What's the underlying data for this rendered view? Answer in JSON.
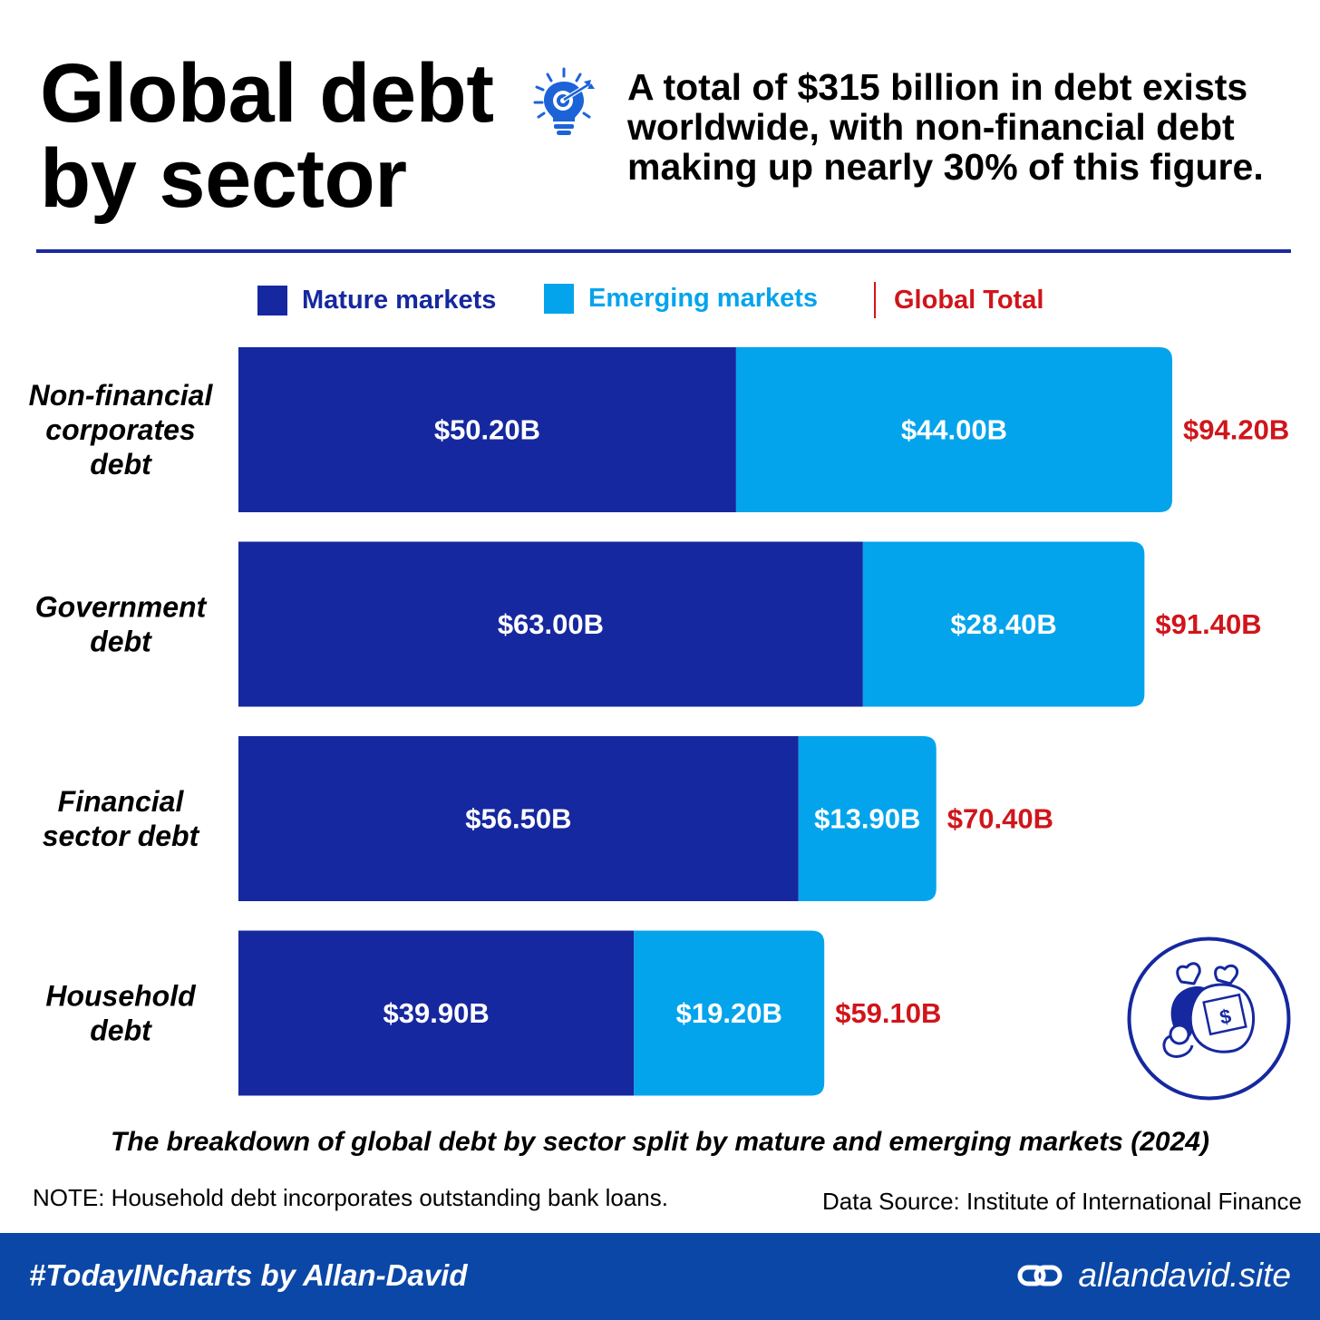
{
  "header": {
    "title_line1": "Global debt",
    "title_line2": "by sector",
    "subtitle": "A total of $315 billion in debt exists worldwide, with non-financial debt making up nearly 30% of this figure."
  },
  "icons": {
    "header_icon": "lightbulb-with-target-icon",
    "badge_icon": "money-bags-icon",
    "footer_icon": "link-icon"
  },
  "chart_data": {
    "type": "bar",
    "orientation": "horizontal",
    "stacked": true,
    "categories": [
      "Non-financial corporates debt",
      "Government debt",
      "Financial sector debt",
      "Household debt"
    ],
    "category_lines": [
      [
        "Non-financial",
        "corporates",
        "debt"
      ],
      [
        "Government",
        "debt"
      ],
      [
        "Financial",
        "sector debt"
      ],
      [
        "Household",
        "debt"
      ]
    ],
    "series": [
      {
        "name": "Mature markets",
        "color": "#16289f",
        "values": [
          50.2,
          63.0,
          56.5,
          39.9
        ],
        "labels": [
          "$50.20B",
          "$63.00B",
          "$56.50B",
          "$39.90B"
        ]
      },
      {
        "name": "Emerging markets",
        "color": "#04a4ec",
        "values": [
          44.0,
          28.4,
          13.9,
          19.2
        ],
        "labels": [
          "$44.00B",
          "$28.40B",
          "$13.90B",
          "$19.20B"
        ]
      }
    ],
    "totals": {
      "name": "Global Total",
      "color": "#d0151b",
      "values": [
        94.2,
        91.4,
        70.4,
        59.1
      ],
      "labels": [
        "$94.20B",
        "$91.40B",
        "$70.40B",
        "$59.10B"
      ]
    },
    "xlim": [
      0,
      94.2
    ],
    "legend": "top",
    "grid": false
  },
  "caption": "The breakdown of global debt by sector split by mature and emerging markets (2024)",
  "note": "NOTE: Household debt incorporates outstanding bank loans.",
  "source": "Data Source: Institute of International Finance",
  "footer": {
    "hashtag": "#TodayINcharts by Allan-David",
    "site": "allandavid.site",
    "background": "#0b47a6"
  }
}
